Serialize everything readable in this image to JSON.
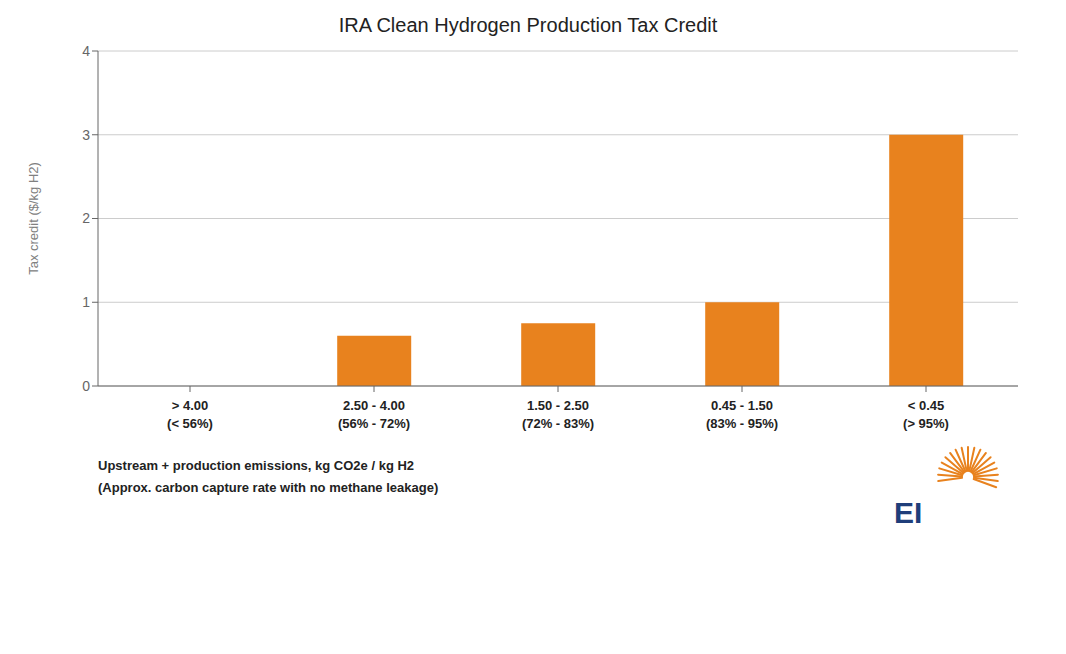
{
  "chart_data": {
    "type": "bar",
    "title": "IRA Clean Hydrogen Production Tax Credit",
    "ylabel": "Tax credit ($/kg H2)",
    "xlabel": "Upstream + production emissions, kg CO2e / kg H2\n(Approx. carbon capture rate with no methane leakage)",
    "categories": [
      "> 4.00\n(< 56%)",
      "2.50 - 4.00\n(56% - 72%)",
      "1.50 - 2.50\n(72% - 83%)",
      "0.45 - 1.50\n(83% - 95%)",
      "< 0.45\n(> 95%)"
    ],
    "values": [
      0,
      0.6,
      0.75,
      1.0,
      3.0
    ],
    "color": "#E8821E",
    "ylim": [
      0,
      4
    ],
    "yticks": [
      0,
      1,
      2,
      3,
      4
    ],
    "grid": true,
    "annotations": [
      {
        "text": "EI",
        "color": "#1F3E7A"
      }
    ]
  }
}
